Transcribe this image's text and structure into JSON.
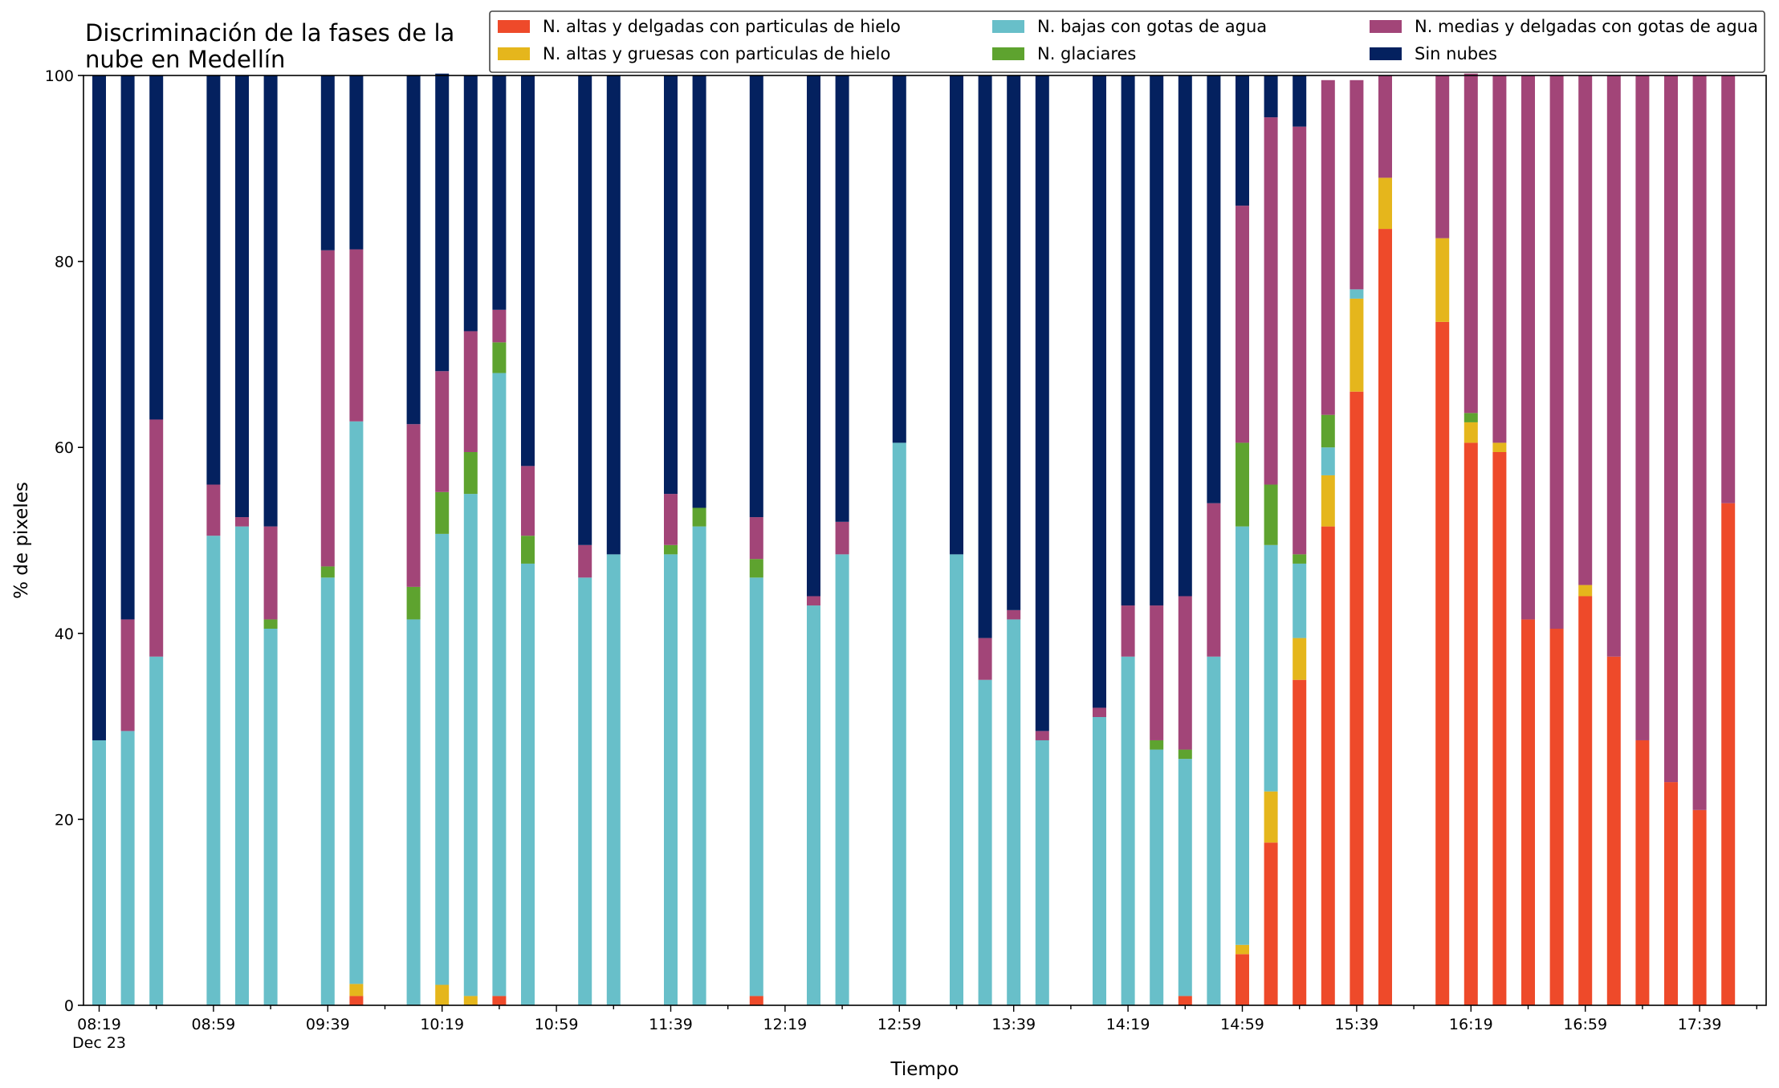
{
  "chart_data": {
    "type": "bar",
    "stacked": true,
    "title": "Discriminación de la fases de la\nnube en Medellín",
    "xlabel": "Tiempo",
    "ylabel": "% de pixeles",
    "ylim": [
      0,
      100
    ],
    "yticks": [
      0,
      20,
      40,
      60,
      80,
      100
    ],
    "grid": false,
    "legend_position": "top-right",
    "time_unit_minutes": 10,
    "start_time": "08:19",
    "x_tick_labels": [
      "08:19",
      "08:59",
      "09:39",
      "10:19",
      "10:59",
      "11:39",
      "12:19",
      "12:59",
      "13:39",
      "14:19",
      "14:59",
      "15:39",
      "16:19",
      "16:59",
      "17:39"
    ],
    "x_first_tick_sublabel": "Dec 23",
    "categories": [
      "08:19",
      "08:29",
      "08:39",
      "08:59",
      "09:09",
      "09:19",
      "09:39",
      "09:49",
      "10:09",
      "10:19",
      "10:29",
      "10:39",
      "10:49",
      "11:09",
      "11:19",
      "11:39",
      "11:49",
      "12:09",
      "12:29",
      "12:39",
      "12:59",
      "13:19",
      "13:29",
      "13:39",
      "13:49",
      "14:09",
      "14:19",
      "14:29",
      "14:39",
      "14:49",
      "14:59",
      "15:09",
      "15:19",
      "15:29",
      "15:39",
      "15:49",
      "16:09",
      "16:19",
      "16:29",
      "16:39",
      "16:49",
      "16:59",
      "17:09",
      "17:19",
      "17:29",
      "17:39",
      "17:49"
    ],
    "series": [
      {
        "name": "N. altas y delgadas con particulas de hielo",
        "color": "#ee4a2a",
        "values": [
          0,
          0,
          0,
          0,
          0,
          0,
          0,
          1,
          0,
          0,
          0,
          1,
          0,
          0,
          0,
          0,
          0,
          1,
          0,
          0,
          0,
          0,
          0,
          0,
          0,
          0,
          0,
          0,
          1,
          0,
          5.5,
          17.5,
          35,
          51.5,
          66,
          83.5,
          73.5,
          60.5,
          59.5,
          41.5,
          40.5,
          44,
          37.5,
          28.5,
          24,
          21,
          54
        ]
      },
      {
        "name": "N. altas y gruesas con particulas de hielo",
        "color": "#e5b61c",
        "values": [
          0,
          0,
          0,
          0,
          0,
          0,
          0,
          1.3,
          0,
          2.2,
          1,
          0,
          0,
          0,
          0,
          0,
          0,
          0,
          0,
          0,
          0,
          0,
          0,
          0,
          0,
          0,
          0,
          0,
          0,
          0,
          1,
          5.5,
          4.5,
          5.5,
          10,
          5.5,
          9,
          2.2,
          1,
          0,
          0,
          1.2,
          0,
          0,
          0,
          0,
          0
        ]
      },
      {
        "name": "N. bajas con gotas de agua",
        "color": "#68bfc9",
        "values": [
          28.5,
          29.5,
          37.5,
          50.5,
          51.5,
          40.5,
          46,
          60.5,
          41.5,
          48.5,
          54,
          67,
          47.5,
          46,
          48.5,
          48.5,
          51.5,
          45,
          43,
          48.5,
          60.5,
          48.5,
          35,
          41.5,
          28.5,
          31,
          37.5,
          27.5,
          25.5,
          37.5,
          45,
          26.5,
          8,
          3,
          1,
          0,
          0,
          0,
          0,
          0,
          0,
          0,
          0,
          0,
          0,
          0,
          0
        ]
      },
      {
        "name": "N. glaciares",
        "color": "#5ea32f",
        "values": [
          0,
          0,
          0,
          0,
          0,
          1,
          1.2,
          0,
          3.5,
          4.5,
          4.5,
          3.3,
          3,
          0,
          0,
          1,
          2,
          2,
          0,
          0,
          0,
          0,
          0,
          0,
          0,
          0,
          0,
          1,
          1,
          0,
          9,
          6.5,
          1,
          3.5,
          0,
          0,
          0,
          1,
          0,
          0,
          0,
          0,
          0,
          0,
          0,
          0,
          0
        ]
      },
      {
        "name": "N. medias y delgadas con gotas de agua",
        "color": "#a24578",
        "values": [
          0,
          12,
          25.5,
          5.5,
          1,
          10,
          34,
          18.5,
          17.5,
          13,
          13,
          3.5,
          7.5,
          3.5,
          0,
          5.5,
          0,
          4.5,
          1,
          3.5,
          0,
          0,
          4.5,
          1,
          1,
          1,
          5.5,
          14.5,
          16.5,
          16.5,
          25.5,
          39.5,
          46,
          36,
          22.5,
          11,
          17.5,
          36.5,
          39.5,
          58.5,
          59.5,
          54.8,
          62.5,
          71.5,
          76,
          79,
          46
        ]
      },
      {
        "name": "Sin nubes",
        "color": "#04215f",
        "values": [
          71.5,
          58.5,
          37,
          44,
          47.5,
          48.5,
          18.8,
          18.7,
          37.5,
          32,
          27.5,
          25.2,
          42,
          50.5,
          51.5,
          45,
          46.5,
          47.5,
          56,
          48,
          39.5,
          51.5,
          60.5,
          57.5,
          70.5,
          68,
          57,
          57,
          56,
          46,
          14,
          4.5,
          5.5,
          0,
          0,
          0,
          0,
          0,
          0,
          0,
          0,
          0,
          0,
          0,
          0,
          0,
          0
        ]
      }
    ]
  }
}
